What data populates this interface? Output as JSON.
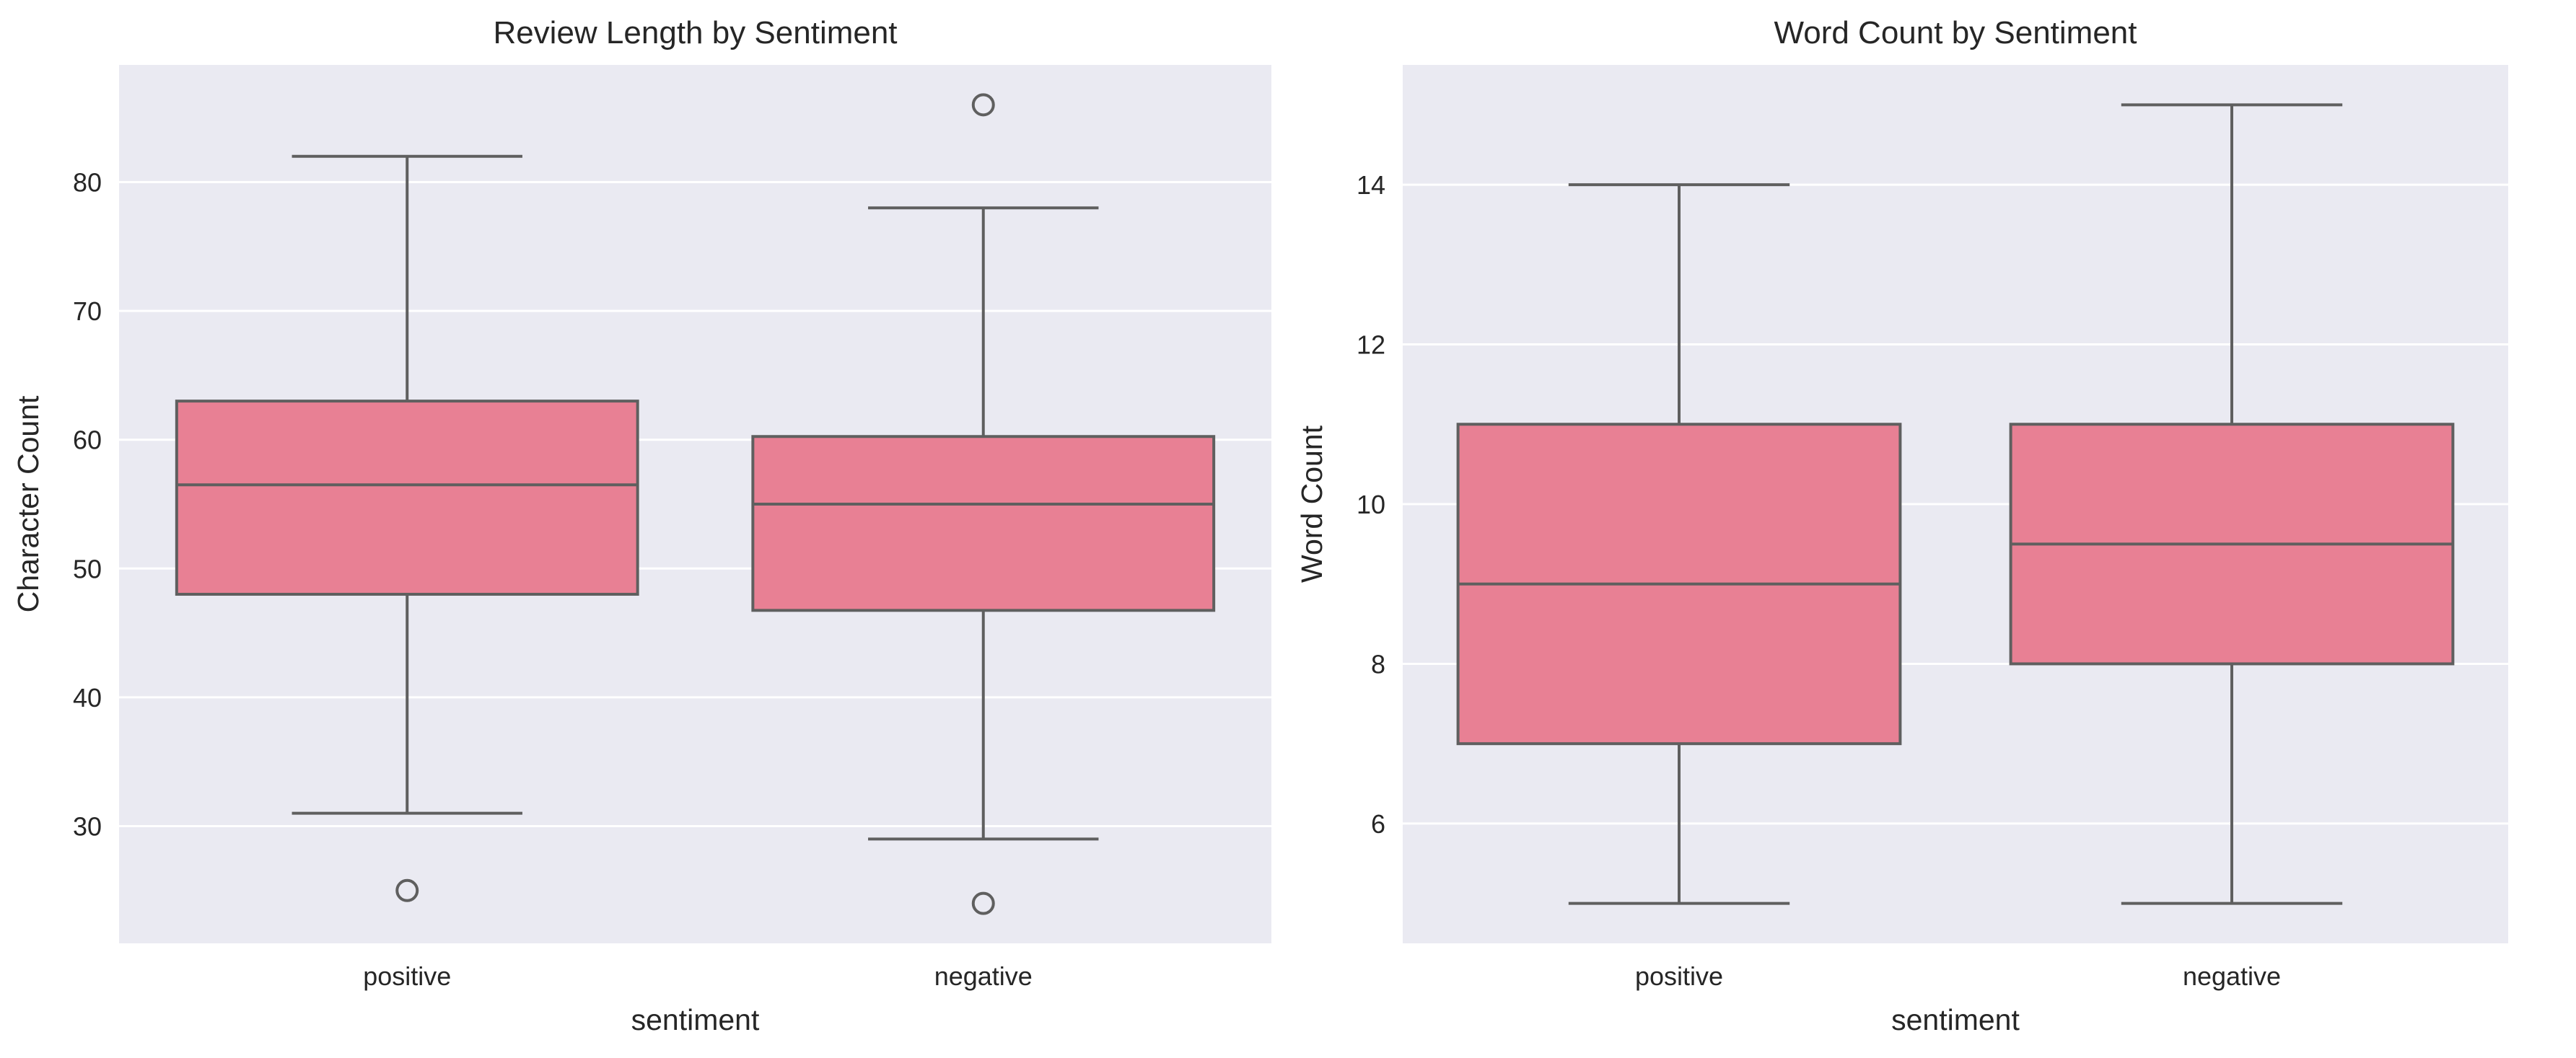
{
  "colors": {
    "panel_bg": "#eaeaf2",
    "grid": "#ffffff",
    "box_fill": "#e88094",
    "box_line": "#5f5f5f",
    "text": "#262626"
  },
  "chart_data": [
    {
      "type": "box",
      "title": "Review Length by Sentiment",
      "xlabel": "sentiment",
      "ylabel": "Character Count",
      "ylim": [
        20.9,
        89.1
      ],
      "yticks": [
        30,
        40,
        50,
        60,
        70,
        80
      ],
      "grid": true,
      "categories": [
        "positive",
        "negative"
      ],
      "boxes": [
        {
          "category": "positive",
          "whisker_low": 31,
          "q1": 48,
          "median": 56.5,
          "q3": 63,
          "whisker_high": 82,
          "outliers": [
            25
          ]
        },
        {
          "category": "negative",
          "whisker_low": 29,
          "q1": 46.75,
          "median": 55,
          "q3": 60.25,
          "whisker_high": 78,
          "outliers": [
            24,
            86
          ]
        }
      ]
    },
    {
      "type": "box",
      "title": "Word Count by Sentiment",
      "xlabel": "sentiment",
      "ylabel": "Word Count",
      "ylim": [
        4.5,
        15.5
      ],
      "yticks": [
        6,
        8,
        10,
        12,
        14
      ],
      "grid": true,
      "categories": [
        "positive",
        "negative"
      ],
      "boxes": [
        {
          "category": "positive",
          "whisker_low": 5,
          "q1": 7,
          "median": 9,
          "q3": 11,
          "whisker_high": 14,
          "outliers": []
        },
        {
          "category": "negative",
          "whisker_low": 5,
          "q1": 8,
          "median": 9.5,
          "q3": 11,
          "whisker_high": 15,
          "outliers": []
        }
      ]
    }
  ]
}
